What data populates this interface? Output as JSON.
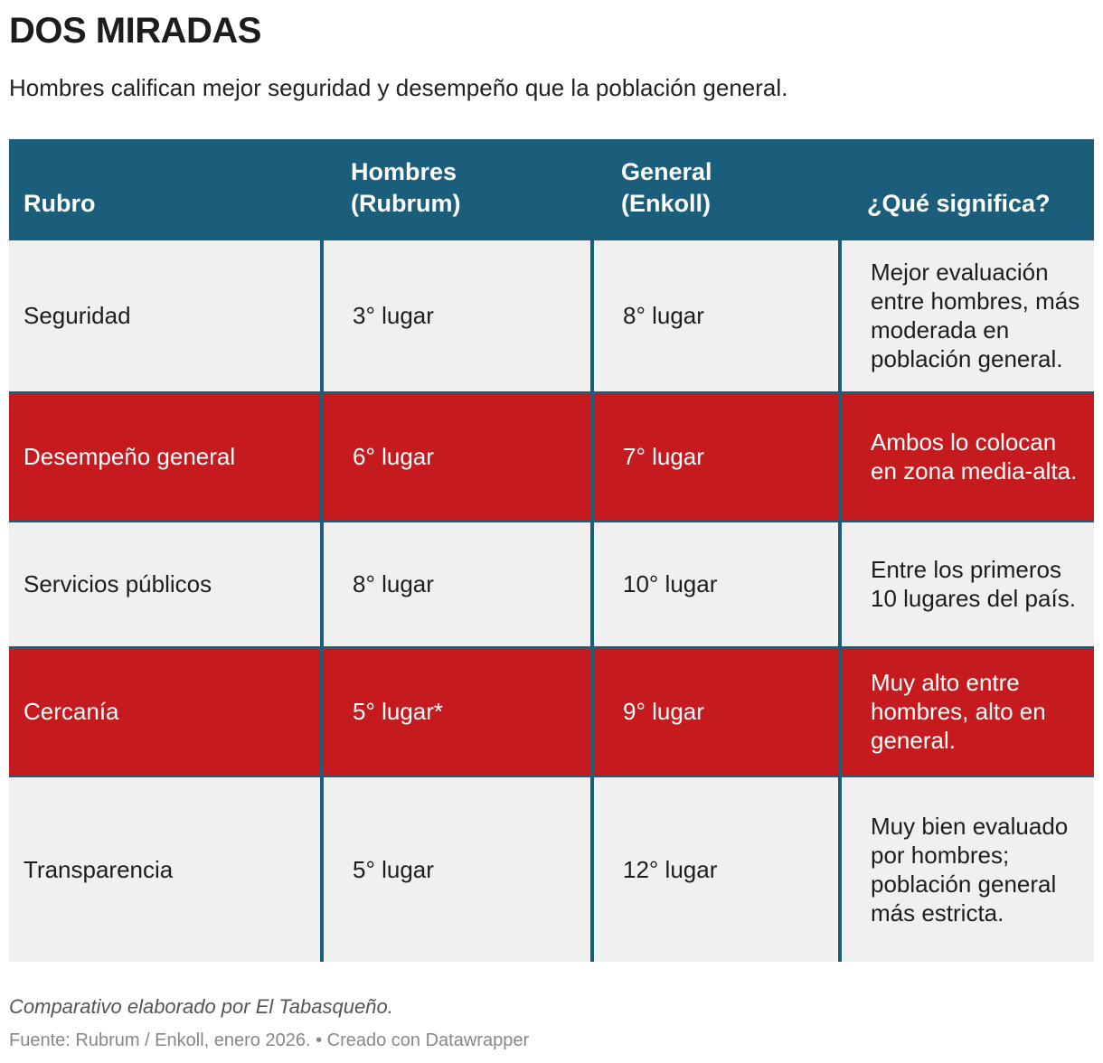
{
  "header": {
    "title": "DOS MIRADAS",
    "subtitle": "Hombres califican mejor seguridad y desempeño que la población general."
  },
  "table": {
    "columns": [
      "Rubro",
      "Hombres (Rubrum)",
      "General (Enkoll)",
      "¿Qué significa?"
    ],
    "rows": [
      [
        "Seguridad",
        "3° lugar",
        "8° lugar",
        "Mejor evaluación entre hombres, más moderada en población general."
      ],
      [
        "Desempeño general",
        "6° lugar",
        "7° lugar",
        "Ambos lo colocan en zona media-alta."
      ],
      [
        "Servicios públicos",
        "8° lugar",
        "10° lugar",
        "Entre los primeros 10 lugares del país."
      ],
      [
        "Cercanía",
        "5° lugar*",
        "9° lugar",
        "Muy alto entre hombres, alto en general."
      ],
      [
        "Transparencia",
        "5° lugar",
        "12° lugar",
        "Muy bien evaluado por hombres; población general más estricta."
      ]
    ]
  },
  "footer": {
    "note": "Comparativo elaborado por El Tabasqueño.",
    "source": "Fuente: Rubrum / Enkoll, enero 2026. • Creado con Datawrapper"
  }
}
